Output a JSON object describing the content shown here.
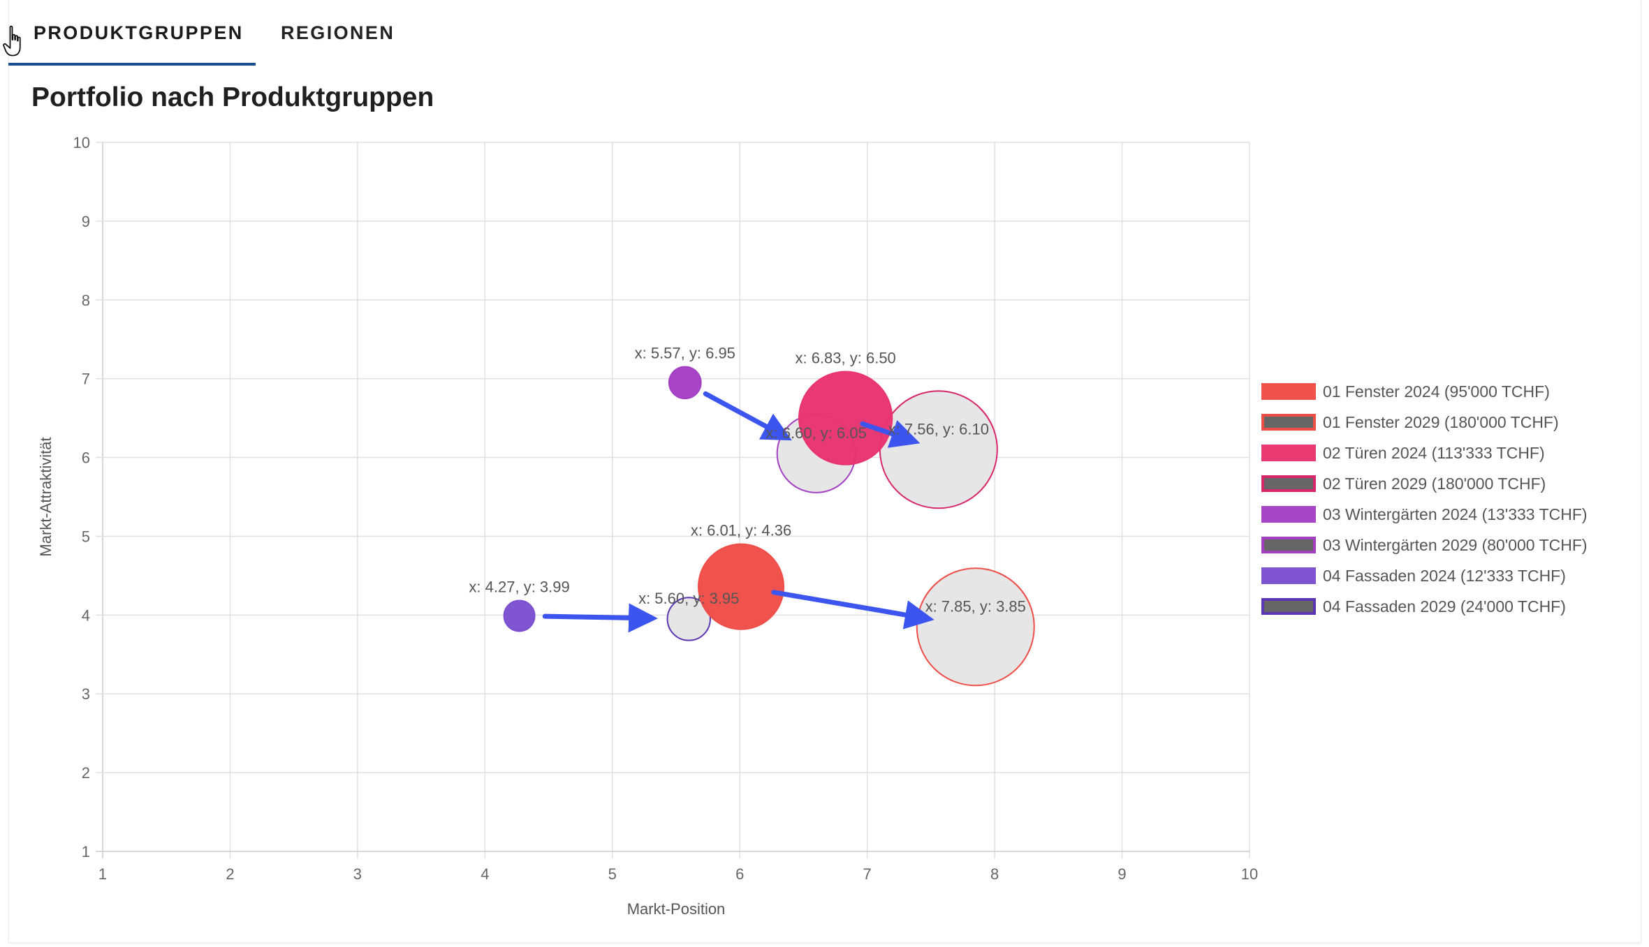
{
  "tabs": [
    {
      "label": "PRODUKTGRUPPEN",
      "active": true
    },
    {
      "label": "REGIONEN",
      "active": false
    }
  ],
  "page_title": "Portfolio nach Produktgruppen",
  "chart_data": {
    "type": "bubble",
    "title": "Portfolio nach Produktgruppen",
    "xlabel": "Markt-Position",
    "ylabel": "Markt-Attraktivität",
    "xlim": [
      1,
      10
    ],
    "ylim": [
      1,
      10
    ],
    "x_ticks": [
      "1",
      "2",
      "3",
      "4",
      "5",
      "6",
      "7",
      "8",
      "9",
      "10"
    ],
    "y_ticks": [
      "1",
      "2",
      "3",
      "4",
      "5",
      "6",
      "7",
      "8",
      "9",
      "10"
    ],
    "grid": true,
    "legend_position": "right",
    "series": [
      {
        "name": "01 Fenster 2024 (95'000 TCHF)",
        "x": 6.01,
        "y": 4.36,
        "size": 95000,
        "label": "x: 6.01, y: 4.36",
        "color": "#ef4d47",
        "filled": true
      },
      {
        "name": "01 Fenster 2029 (180'000 TCHF)",
        "x": 7.85,
        "y": 3.85,
        "size": 180000,
        "label": "x: 7.85, y: 3.85",
        "color": "#ef4d47",
        "filled": false
      },
      {
        "name": "02 Türen 2024 (113'333 TCHF)",
        "x": 6.83,
        "y": 6.5,
        "size": 113333,
        "label": "x: 6.83, y: 6.50",
        "color": "#e8336f",
        "filled": true
      },
      {
        "name": "02 Türen 2029 (180'000 TCHF)",
        "x": 7.56,
        "y": 6.1,
        "size": 180000,
        "label": "x: 7.56, y: 6.10",
        "color": "#d8266a",
        "filled": false
      },
      {
        "name": "03 Wintergärten 2024 (13'333 TCHF)",
        "x": 5.57,
        "y": 6.95,
        "size": 13333,
        "label": "x: 5.57, y: 6.95",
        "color": "#a43fc4",
        "filled": true
      },
      {
        "name": "03 Wintergärten 2029 (80'000 TCHF)",
        "x": 6.6,
        "y": 6.05,
        "size": 80000,
        "label": "x: 6.60, y: 6.05",
        "color": "#a43fc4",
        "filled": false
      },
      {
        "name": "04 Fassaden 2024 (12'333 TCHF)",
        "x": 4.27,
        "y": 3.99,
        "size": 12333,
        "label": "x: 4.27, y: 3.99",
        "color": "#7b4fcf",
        "filled": true
      },
      {
        "name": "04 Fassaden 2029 (24'000 TCHF)",
        "x": 5.6,
        "y": 3.95,
        "size": 24000,
        "label": "x: 5.60, y: 3.95",
        "color": "#5b35b3",
        "filled": false
      }
    ],
    "arrows": [
      {
        "from": [
          5.57,
          6.95
        ],
        "to": [
          6.6,
          6.05
        ]
      },
      {
        "from": [
          6.83,
          6.5
        ],
        "to": [
          7.56,
          6.1
        ]
      },
      {
        "from": [
          4.27,
          3.99
        ],
        "to": [
          5.6,
          3.95
        ]
      },
      {
        "from": [
          6.01,
          4.36
        ],
        "to": [
          7.85,
          3.85
        ]
      }
    ],
    "colors": {
      "outline_fill": "#e6e6e6",
      "arrow": "#3d55ef",
      "grid": "#e0e0e0",
      "tab_indicator": "#1a4f8f",
      "legend_2029_fill": "#666666"
    }
  }
}
